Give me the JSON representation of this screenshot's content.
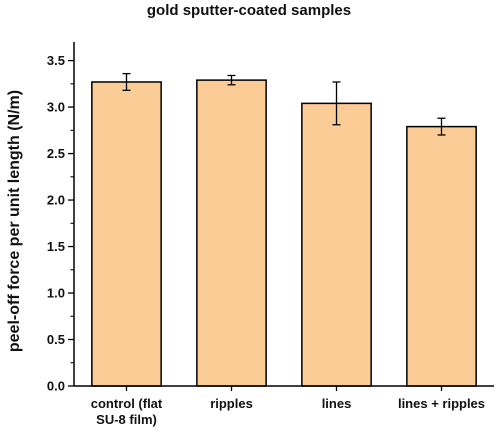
{
  "chart_data": {
    "type": "bar",
    "title": "gold sputter-coated samples",
    "xlabel": "",
    "ylabel": "peel-off force per unit length (N/m)",
    "categories": [
      [
        "control (flat",
        "SU-8 film)"
      ],
      [
        "ripples"
      ],
      [
        "lines"
      ],
      [
        "lines + ripples"
      ]
    ],
    "values": [
      3.27,
      3.29,
      3.04,
      2.79
    ],
    "errors": [
      0.09,
      0.05,
      0.23,
      0.09
    ],
    "ylim": [
      0,
      3.7
    ],
    "yticks": [
      "0.0",
      "0.5",
      "1.0",
      "1.5",
      "2.0",
      "2.5",
      "3.0",
      "3.5"
    ],
    "bar_color": "#fccc96",
    "edge_color": "#000000",
    "grid": false,
    "legend": "none"
  }
}
